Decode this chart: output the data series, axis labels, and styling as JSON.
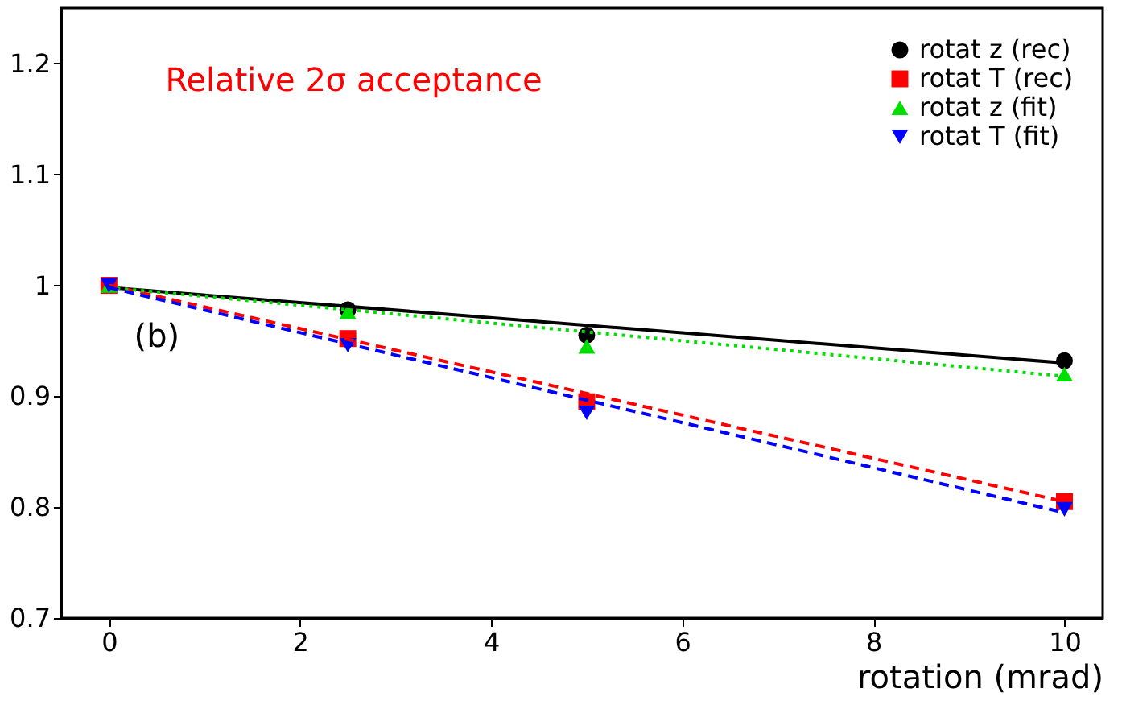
{
  "chart_data": {
    "type": "scatter",
    "xlabel": "rotation (mrad)",
    "xlim": [
      -0.5,
      10.4
    ],
    "ylim": [
      0.7,
      1.25
    ],
    "xticks": [
      0,
      2,
      4,
      6,
      8,
      10
    ],
    "yticks": [
      0.7,
      0.8,
      0.9,
      1,
      1.1,
      1.2
    ],
    "grid": false,
    "legend": "top right",
    "annotations": [
      "Relative 2σ acceptance",
      "(b)"
    ],
    "series": [
      {
        "name": "rotat z (rec)",
        "color": "#000000",
        "marker": "circle",
        "x": [
          2.5,
          5,
          10
        ],
        "values": [
          0.978,
          0.955,
          0.932
        ]
      },
      {
        "name": "rotat T (rec)",
        "color": "#ff0000",
        "marker": "square",
        "x": [
          0,
          2.5,
          5,
          10
        ],
        "values": [
          1.0,
          0.952,
          0.895,
          0.805
        ]
      },
      {
        "name": "rotat z (fit)",
        "color": "#00dd00",
        "marker": "triangle",
        "x": [
          0,
          2.5,
          5,
          10
        ],
        "values": [
          1.0,
          0.976,
          0.945,
          0.92
        ]
      },
      {
        "name": "rotat T (fit)",
        "color": "#0000ff",
        "marker": "triangle-down",
        "x": [
          0,
          2.5,
          5,
          10
        ],
        "values": [
          1.0,
          0.946,
          0.885,
          0.798
        ]
      },
      {
        "type": "line",
        "color": "#000000",
        "line_style": "solid",
        "x": [
          0,
          10
        ],
        "values": [
          0.998,
          0.93
        ]
      },
      {
        "type": "line",
        "color": "#ff0000",
        "line_style": "dashed",
        "x": [
          0,
          10
        ],
        "values": [
          1.0,
          0.805
        ]
      },
      {
        "type": "line",
        "color": "#00dd00",
        "line_style": "dotted",
        "x": [
          0,
          10
        ],
        "values": [
          0.998,
          0.918
        ]
      },
      {
        "type": "line",
        "color": "#0000ff",
        "line_style": "dashed",
        "x": [
          0,
          10
        ],
        "values": [
          0.998,
          0.795
        ]
      }
    ]
  }
}
